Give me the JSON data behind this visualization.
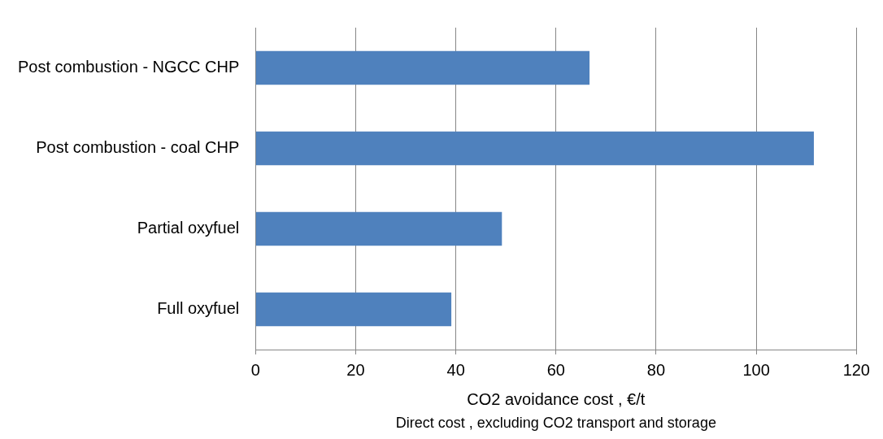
{
  "chart_data": {
    "type": "bar",
    "orientation": "horizontal",
    "categories": [
      "Post combustion - NGCC CHP",
      "Post combustion - coal CHP",
      "Partial oxyfuel",
      "Full oxyfuel"
    ],
    "values": [
      66.7,
      111.5,
      49.2,
      39.1
    ],
    "color": "#4f81bd",
    "xlim": [
      0,
      120
    ],
    "xticks": [
      0,
      20,
      40,
      60,
      80,
      100,
      120
    ],
    "grid": "x",
    "xlabel": "CO2 avoidance cost , €/t",
    "annotations": [
      "Direct cost , excluding CO2 transport and storage"
    ]
  }
}
